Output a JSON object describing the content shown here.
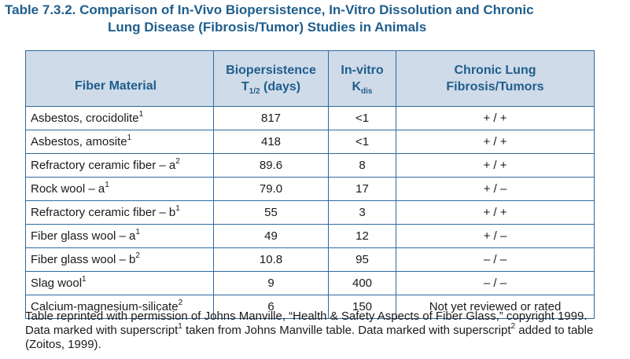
{
  "title_line1": "Table 7.3.2. Comparison of In-Vivo Biopersistence, In-Vitro Dissolution and Chronic",
  "title_line2": "Lung Disease (Fibrosis/Tumor) Studies in Animals",
  "headers": {
    "material": "Fiber Material",
    "bio_line1": "Biopersistence",
    "bio_T": "T",
    "bio_sub": "1/2",
    "bio_unit": " (days)",
    "invitro_line1": "In-vitro",
    "invitro_K": "K",
    "invitro_sub": "dis",
    "chronic_line1": "Chronic Lung",
    "chronic_line2": "Fibrosis/Tumors"
  },
  "rows": [
    {
      "material": "Asbestos, crocidolite",
      "sup": "1",
      "bio": "817",
      "kdis": "<1",
      "chronic": "+ / +"
    },
    {
      "material": "Asbestos, amosite",
      "sup": "1",
      "bio": "418",
      "kdis": "<1",
      "chronic": "+ / +"
    },
    {
      "material": "Refractory ceramic fiber – a",
      "sup": "2",
      "bio": "89.6",
      "kdis": "8",
      "chronic": "+ / +"
    },
    {
      "material": "Rock wool – a",
      "sup": "1",
      "bio": "79.0",
      "kdis": "17",
      "chronic": "+ / –"
    },
    {
      "material": "Refractory ceramic fiber – b",
      "sup": "1",
      "bio": "55",
      "kdis": "3",
      "chronic": "+ / +"
    },
    {
      "material": "Fiber glass wool – a",
      "sup": "1",
      "bio": "49",
      "kdis": "12",
      "chronic": "+ / –"
    },
    {
      "material": "Fiber glass wool – b",
      "sup": "2",
      "bio": "10.8",
      "kdis": "95",
      "chronic": "– / –"
    },
    {
      "material": "Slag wool",
      "sup": "1",
      "bio": "9",
      "kdis": "400",
      "chronic": "– / –"
    },
    {
      "material": "Calcium-magnesium-silicate",
      "sup": "2",
      "bio": "6",
      "kdis": "150",
      "chronic": "Not yet reviewed or rated"
    }
  ],
  "caption": {
    "part1": "Table reprinted with permission of Johns Manville, “Health & Safety Aspects of Fiber Glass,” copyright 1999. Data marked with superscript",
    "sup1": "1",
    "part2": " taken from Johns Manville table. Data marked with superscript",
    "sup2": "2",
    "part3": " added to table (Zoitos, 1999)."
  },
  "colors": {
    "title": "#1f5e8c",
    "header_bg": "#cfdbe9",
    "border": "#2f6aa0"
  }
}
